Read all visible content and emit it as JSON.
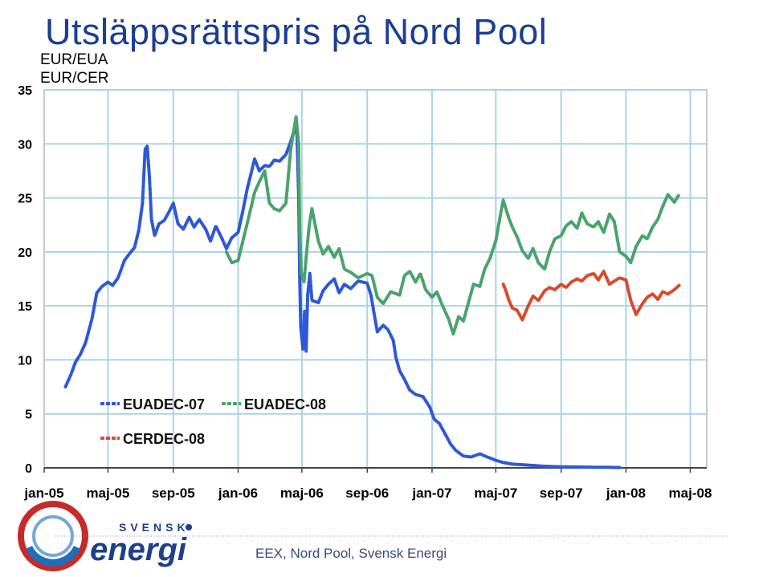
{
  "header": {
    "title": "Utsläppsrättspris på Nord Pool",
    "unit_eua": "EUR/EUA",
    "unit_cer": "EUR/CER"
  },
  "footer": {
    "source": "EEX, Nord Pool, Svensk Energi",
    "logo_small": "SVENSK",
    "logo_big": "energi"
  },
  "colors": {
    "title": "#1a3e92",
    "euadec07": "#2e58d6",
    "euadec08": "#4aa36b",
    "cerdec08": "#d94a2c",
    "grid": "#a9d3ec"
  },
  "chart_data": {
    "type": "line",
    "title": "Utsläppsrättspris på Nord Pool",
    "ylabel": "EUR/EUA EUR/CER",
    "xlim": [
      "2005-01-01",
      "2008-06-01"
    ],
    "ylim": [
      0,
      35
    ],
    "yticks": [
      0,
      5,
      10,
      15,
      20,
      25,
      30,
      35
    ],
    "xticks": [
      {
        "date": "2005-01-01",
        "label": "jan-05"
      },
      {
        "date": "2005-05-01",
        "label": "maj-05"
      },
      {
        "date": "2005-09-01",
        "label": "sep-05"
      },
      {
        "date": "2006-01-01",
        "label": "jan-06"
      },
      {
        "date": "2006-05-01",
        "label": "maj-06"
      },
      {
        "date": "2006-09-01",
        "label": "sep-06"
      },
      {
        "date": "2007-01-01",
        "label": "jan-07"
      },
      {
        "date": "2007-05-01",
        "label": "maj-07"
      },
      {
        "date": "2007-09-01",
        "label": "sep-07"
      },
      {
        "date": "2008-01-01",
        "label": "jan-08"
      },
      {
        "date": "2008-05-01",
        "label": "maj-08"
      }
    ],
    "grid": true,
    "legend": "bottom-left",
    "series": [
      {
        "name": "EUADEC-07",
        "color": "#2e58d6",
        "points": [
          [
            "2005-02-10",
            7.5
          ],
          [
            "2005-02-20",
            8.6
          ],
          [
            "2005-03-01",
            9.8
          ],
          [
            "2005-03-10",
            10.5
          ],
          [
            "2005-03-20",
            11.6
          ],
          [
            "2005-04-01",
            13.8
          ],
          [
            "2005-04-10",
            16.2
          ],
          [
            "2005-04-20",
            16.8
          ],
          [
            "2005-05-01",
            17.2
          ],
          [
            "2005-05-10",
            16.9
          ],
          [
            "2005-05-20",
            17.6
          ],
          [
            "2005-06-01",
            19.2
          ],
          [
            "2005-06-10",
            19.8
          ],
          [
            "2005-06-20",
            20.4
          ],
          [
            "2005-06-28",
            22.0
          ],
          [
            "2005-07-05",
            24.5
          ],
          [
            "2005-07-10",
            29.5
          ],
          [
            "2005-07-14",
            29.8
          ],
          [
            "2005-07-18",
            27.0
          ],
          [
            "2005-07-22",
            23.0
          ],
          [
            "2005-07-28",
            21.5
          ],
          [
            "2005-08-05",
            22.6
          ],
          [
            "2005-08-15",
            22.9
          ],
          [
            "2005-08-25",
            23.8
          ],
          [
            "2005-09-01",
            24.5
          ],
          [
            "2005-09-10",
            22.6
          ],
          [
            "2005-09-20",
            22.1
          ],
          [
            "2005-10-01",
            23.2
          ],
          [
            "2005-10-10",
            22.3
          ],
          [
            "2005-10-20",
            23.0
          ],
          [
            "2005-11-01",
            22.1
          ],
          [
            "2005-11-10",
            21.0
          ],
          [
            "2005-11-20",
            22.4
          ],
          [
            "2005-12-01",
            21.3
          ],
          [
            "2005-12-10",
            20.3
          ],
          [
            "2005-12-20",
            21.3
          ],
          [
            "2006-01-01",
            21.8
          ],
          [
            "2006-01-10",
            23.8
          ],
          [
            "2006-01-18",
            25.8
          ],
          [
            "2006-01-25",
            27.2
          ],
          [
            "2006-02-01",
            28.6
          ],
          [
            "2006-02-10",
            27.5
          ],
          [
            "2006-02-20",
            28.0
          ],
          [
            "2006-03-01",
            27.9
          ],
          [
            "2006-03-10",
            28.5
          ],
          [
            "2006-03-20",
            28.4
          ],
          [
            "2006-04-01",
            29.0
          ],
          [
            "2006-04-10",
            30.2
          ],
          [
            "2006-04-18",
            31.5
          ],
          [
            "2006-04-22",
            30.8
          ],
          [
            "2006-04-25",
            25.0
          ],
          [
            "2006-04-27",
            17.5
          ],
          [
            "2006-04-29",
            13.0
          ],
          [
            "2006-05-03",
            11.0
          ],
          [
            "2006-05-06",
            14.5
          ],
          [
            "2006-05-09",
            10.8
          ],
          [
            "2006-05-12",
            16.0
          ],
          [
            "2006-05-16",
            18.0
          ],
          [
            "2006-05-20",
            15.5
          ],
          [
            "2006-06-01",
            15.3
          ],
          [
            "2006-06-10",
            16.4
          ],
          [
            "2006-06-20",
            17.0
          ],
          [
            "2006-07-01",
            17.5
          ],
          [
            "2006-07-10",
            16.2
          ],
          [
            "2006-07-20",
            17.0
          ],
          [
            "2006-08-01",
            16.6
          ],
          [
            "2006-08-15",
            17.3
          ],
          [
            "2006-09-01",
            17.1
          ],
          [
            "2006-09-08",
            16.0
          ],
          [
            "2006-09-15",
            14.0
          ],
          [
            "2006-09-20",
            12.6
          ],
          [
            "2006-10-01",
            13.2
          ],
          [
            "2006-10-10",
            12.8
          ],
          [
            "2006-10-20",
            11.8
          ],
          [
            "2006-10-25",
            10.2
          ],
          [
            "2006-11-01",
            9.0
          ],
          [
            "2006-11-10",
            8.2
          ],
          [
            "2006-11-20",
            7.2
          ],
          [
            "2006-12-01",
            6.8
          ],
          [
            "2006-12-15",
            6.6
          ],
          [
            "2006-12-28",
            5.6
          ],
          [
            "2007-01-05",
            4.5
          ],
          [
            "2007-01-15",
            4.1
          ],
          [
            "2007-01-25",
            3.2
          ],
          [
            "2007-02-05",
            2.2
          ],
          [
            "2007-02-15",
            1.6
          ],
          [
            "2007-03-01",
            1.1
          ],
          [
            "2007-03-15",
            1.0
          ],
          [
            "2007-04-01",
            1.3
          ],
          [
            "2007-04-15",
            1.0
          ],
          [
            "2007-05-01",
            0.7
          ],
          [
            "2007-05-15",
            0.5
          ],
          [
            "2007-06-01",
            0.35
          ],
          [
            "2007-07-01",
            0.25
          ],
          [
            "2007-08-01",
            0.15
          ],
          [
            "2007-09-01",
            0.1
          ],
          [
            "2007-10-01",
            0.08
          ],
          [
            "2007-11-01",
            0.06
          ],
          [
            "2007-12-01",
            0.05
          ],
          [
            "2007-12-20",
            0.03
          ]
        ]
      },
      {
        "name": "EUADEC-08",
        "color": "#4aa36b",
        "points": [
          [
            "2005-12-10",
            20.0
          ],
          [
            "2005-12-20",
            19.0
          ],
          [
            "2006-01-01",
            19.2
          ],
          [
            "2006-01-10",
            21.0
          ],
          [
            "2006-01-20",
            23.0
          ],
          [
            "2006-02-01",
            25.5
          ],
          [
            "2006-02-10",
            26.5
          ],
          [
            "2006-02-20",
            27.5
          ],
          [
            "2006-03-01",
            24.5
          ],
          [
            "2006-03-10",
            24.0
          ],
          [
            "2006-03-20",
            23.8
          ],
          [
            "2006-04-01",
            24.5
          ],
          [
            "2006-04-10",
            29.5
          ],
          [
            "2006-04-20",
            32.5
          ],
          [
            "2006-04-25",
            30.0
          ],
          [
            "2006-04-27",
            22.0
          ],
          [
            "2006-04-30",
            18.0
          ],
          [
            "2006-05-05",
            17.2
          ],
          [
            "2006-05-10",
            20.0
          ],
          [
            "2006-05-15",
            22.5
          ],
          [
            "2006-05-20",
            24.0
          ],
          [
            "2006-06-01",
            21.0
          ],
          [
            "2006-06-10",
            19.8
          ],
          [
            "2006-06-20",
            20.5
          ],
          [
            "2006-07-01",
            19.5
          ],
          [
            "2006-07-10",
            20.3
          ],
          [
            "2006-07-20",
            18.4
          ],
          [
            "2006-08-01",
            18.1
          ],
          [
            "2006-08-15",
            17.6
          ],
          [
            "2006-09-01",
            18.0
          ],
          [
            "2006-09-10",
            17.8
          ],
          [
            "2006-09-20",
            15.8
          ],
          [
            "2006-10-01",
            15.2
          ],
          [
            "2006-10-15",
            16.3
          ],
          [
            "2006-11-01",
            16.0
          ],
          [
            "2006-11-10",
            17.8
          ],
          [
            "2006-11-20",
            18.2
          ],
          [
            "2006-12-01",
            17.2
          ],
          [
            "2006-12-10",
            18.0
          ],
          [
            "2006-12-20",
            16.5
          ],
          [
            "2007-01-01",
            15.8
          ],
          [
            "2007-01-10",
            16.3
          ],
          [
            "2007-01-20",
            15.1
          ],
          [
            "2007-02-01",
            13.8
          ],
          [
            "2007-02-10",
            12.4
          ],
          [
            "2007-02-20",
            14.0
          ],
          [
            "2007-03-01",
            13.6
          ],
          [
            "2007-03-10",
            15.2
          ],
          [
            "2007-03-20",
            17.0
          ],
          [
            "2007-04-01",
            16.8
          ],
          [
            "2007-04-10",
            18.4
          ],
          [
            "2007-04-20",
            19.4
          ],
          [
            "2007-05-01",
            21.0
          ],
          [
            "2007-05-10",
            23.5
          ],
          [
            "2007-05-15",
            24.8
          ],
          [
            "2007-05-25",
            23.2
          ],
          [
            "2007-06-01",
            22.3
          ],
          [
            "2007-06-10",
            21.4
          ],
          [
            "2007-06-20",
            20.1
          ],
          [
            "2007-07-01",
            19.4
          ],
          [
            "2007-07-10",
            20.3
          ],
          [
            "2007-07-20",
            19.0
          ],
          [
            "2007-08-01",
            18.4
          ],
          [
            "2007-08-10",
            20.0
          ],
          [
            "2007-08-20",
            21.2
          ],
          [
            "2007-09-01",
            21.5
          ],
          [
            "2007-09-10",
            22.4
          ],
          [
            "2007-09-20",
            22.8
          ],
          [
            "2007-10-01",
            22.2
          ],
          [
            "2007-10-10",
            23.6
          ],
          [
            "2007-10-20",
            22.6
          ],
          [
            "2007-11-01",
            22.3
          ],
          [
            "2007-11-10",
            22.8
          ],
          [
            "2007-11-20",
            21.8
          ],
          [
            "2007-12-01",
            23.5
          ],
          [
            "2007-12-10",
            22.8
          ],
          [
            "2007-12-20",
            20.0
          ],
          [
            "2008-01-01",
            19.6
          ],
          [
            "2008-01-10",
            19.0
          ],
          [
            "2008-01-20",
            20.5
          ],
          [
            "2008-02-01",
            21.5
          ],
          [
            "2008-02-10",
            21.2
          ],
          [
            "2008-02-20",
            22.3
          ],
          [
            "2008-03-01",
            23.0
          ],
          [
            "2008-03-10",
            24.2
          ],
          [
            "2008-03-20",
            25.3
          ],
          [
            "2008-04-01",
            24.6
          ],
          [
            "2008-04-10",
            25.3
          ]
        ]
      },
      {
        "name": "CERDEC-08",
        "color": "#d94a2c",
        "points": [
          [
            "2007-05-15",
            17.0
          ],
          [
            "2007-05-20",
            16.4
          ],
          [
            "2007-05-25",
            15.6
          ],
          [
            "2007-06-01",
            14.8
          ],
          [
            "2007-06-10",
            14.6
          ],
          [
            "2007-06-20",
            13.7
          ],
          [
            "2007-07-01",
            15.0
          ],
          [
            "2007-07-10",
            15.9
          ],
          [
            "2007-07-20",
            15.5
          ],
          [
            "2007-08-01",
            16.4
          ],
          [
            "2007-08-10",
            16.7
          ],
          [
            "2007-08-20",
            16.5
          ],
          [
            "2007-09-01",
            17.0
          ],
          [
            "2007-09-10",
            16.7
          ],
          [
            "2007-09-20",
            17.2
          ],
          [
            "2007-10-01",
            17.5
          ],
          [
            "2007-10-10",
            17.3
          ],
          [
            "2007-10-20",
            17.8
          ],
          [
            "2007-11-01",
            18.0
          ],
          [
            "2007-11-10",
            17.4
          ],
          [
            "2007-11-20",
            18.2
          ],
          [
            "2007-12-01",
            17.0
          ],
          [
            "2007-12-10",
            17.3
          ],
          [
            "2007-12-20",
            17.6
          ],
          [
            "2008-01-01",
            17.4
          ],
          [
            "2008-01-10",
            15.5
          ],
          [
            "2008-01-20",
            14.2
          ],
          [
            "2008-02-01",
            15.2
          ],
          [
            "2008-02-10",
            15.8
          ],
          [
            "2008-02-20",
            16.1
          ],
          [
            "2008-03-01",
            15.6
          ],
          [
            "2008-03-10",
            16.3
          ],
          [
            "2008-03-20",
            16.1
          ],
          [
            "2008-04-01",
            16.5
          ],
          [
            "2008-04-10",
            16.9
          ]
        ]
      }
    ]
  }
}
